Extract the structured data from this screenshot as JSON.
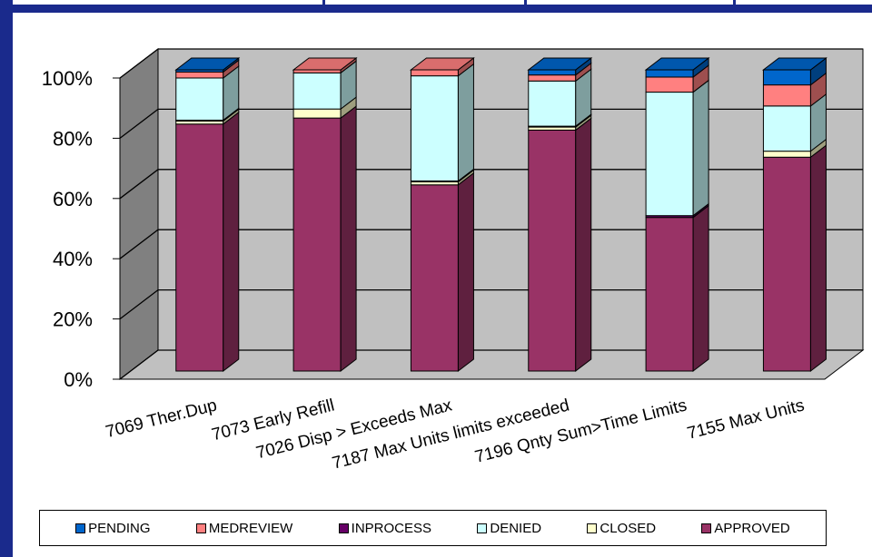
{
  "chart_data": {
    "type": "bar",
    "stacked": "percent",
    "three_d": true,
    "categories": [
      "7069 Ther.Dup",
      "7073 Early Refill",
      "7026 Disp > Exceeds Max",
      "7187 Max Units limits exceeded",
      "7196 Qnty Sum>Time Limits",
      "7155 Max Units"
    ],
    "series": [
      {
        "name": "APPROVED",
        "color": "#993366",
        "values": [
          82,
          84,
          62,
          80,
          51,
          71
        ]
      },
      {
        "name": "CLOSED",
        "color": "#ffffcc",
        "values": [
          1,
          3,
          1,
          1,
          0,
          2
        ]
      },
      {
        "name": "INPROCESS",
        "color": "#660066",
        "values": [
          0.3,
          0,
          0.3,
          0.3,
          0.6,
          0
        ]
      },
      {
        "name": "DENIED",
        "color": "#ccffff",
        "values": [
          14,
          12,
          35,
          15,
          41,
          15
        ]
      },
      {
        "name": "MEDREVIEW",
        "color": "#ff8080",
        "values": [
          2,
          1,
          2,
          2,
          5,
          7
        ]
      },
      {
        "name": "PENDING",
        "color": "#0066cc",
        "values": [
          0.7,
          0,
          0,
          1.7,
          2.4,
          5
        ]
      }
    ],
    "yticks": [
      "0%",
      "20%",
      "40%",
      "60%",
      "80%",
      "100%"
    ],
    "ylim": [
      0,
      100
    ],
    "grid": true,
    "legend_position": "bottom",
    "legend_order": [
      "PENDING",
      "MEDREVIEW",
      "INPROCESS",
      "DENIED",
      "CLOSED",
      "APPROVED"
    ],
    "wall_color": "#c0c0c0"
  }
}
